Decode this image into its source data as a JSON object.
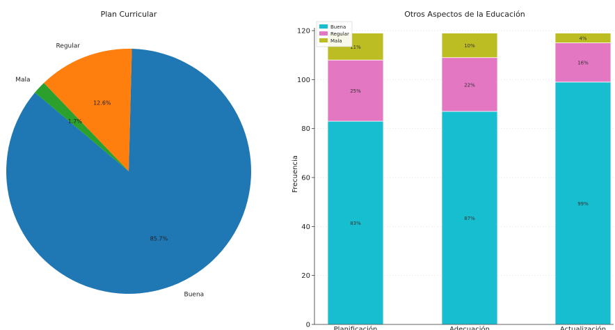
{
  "chart_data": [
    {
      "type": "pie",
      "title": "Plan Curricular",
      "slices": [
        {
          "label": "Buena",
          "value": 85.7,
          "pct_label": "85.7%",
          "color": "#1f77b4"
        },
        {
          "label": "Regular",
          "value": 12.6,
          "pct_label": "12.6%",
          "color": "#ff7f0e"
        },
        {
          "label": "Mala",
          "value": 1.7,
          "pct_label": "1.7%",
          "color": "#2ca02c"
        }
      ],
      "start_angle_deg": 140,
      "direction": "counterclockwise"
    },
    {
      "type": "bar",
      "stacked": true,
      "title": "Otros Aspectos de la Educación",
      "xlabel": "",
      "ylabel": "Frecuencia",
      "categories": [
        "Planificación",
        "Adecuación",
        "Actualización"
      ],
      "ylim": [
        0,
        120
      ],
      "yticks": [
        0,
        20,
        40,
        60,
        80,
        100,
        120
      ],
      "grid": true,
      "legend_position": "top-left",
      "series": [
        {
          "name": "Buena",
          "color": "#17becf",
          "values": [
            83,
            87,
            99
          ],
          "labels": [
            "83%",
            "87%",
            "99%"
          ]
        },
        {
          "name": "Regular",
          "color": "#e377c2",
          "values": [
            25,
            22,
            16
          ],
          "labels": [
            "25%",
            "22%",
            "16%"
          ]
        },
        {
          "name": "Mala",
          "color": "#bcbd22",
          "values": [
            11,
            10,
            4
          ],
          "labels": [
            "11%",
            "10%",
            "4%"
          ]
        }
      ]
    }
  ]
}
